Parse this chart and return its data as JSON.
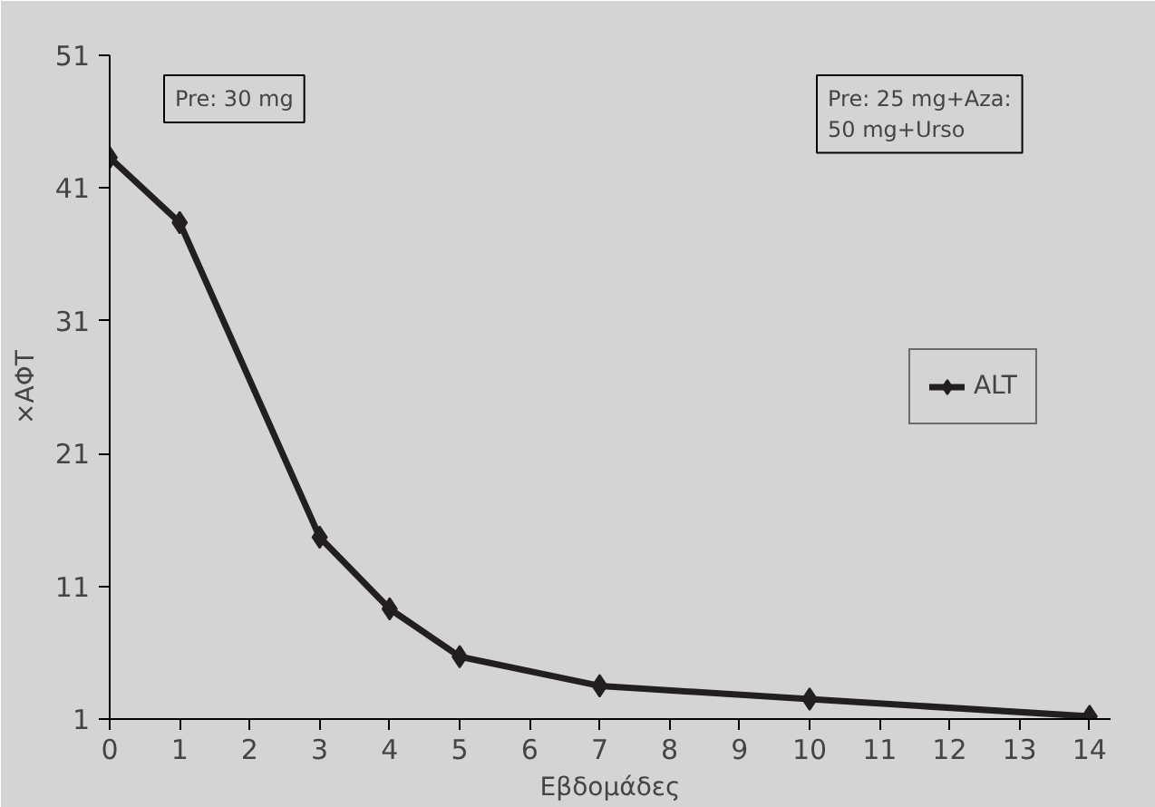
{
  "chart_data": {
    "type": "line",
    "xlabel": "Εβδομάδες",
    "ylabel": "×ΑΦΤ",
    "x": [
      0,
      1,
      3,
      4,
      5,
      7,
      10,
      14
    ],
    "series": [
      {
        "name": "ALT",
        "color": "#231f20",
        "values": [
          43.3,
          38.4,
          14.7,
          9.3,
          5.7,
          3.5,
          2.5,
          1.2
        ]
      }
    ],
    "xlim": [
      0,
      14.3
    ],
    "ylim": [
      1,
      51
    ],
    "xticks": [
      0,
      1,
      2,
      3,
      4,
      5,
      6,
      7,
      8,
      9,
      10,
      11,
      12,
      13,
      14
    ],
    "yticks": [
      1,
      11,
      21,
      31,
      41,
      51
    ],
    "annotations": [
      "Pre: 30 mg",
      "Pre: 25 mg+Aza:\n      50 mg+Urso"
    ],
    "marker": "diamond",
    "line_style": "solid",
    "legend": "right",
    "grid": false
  }
}
